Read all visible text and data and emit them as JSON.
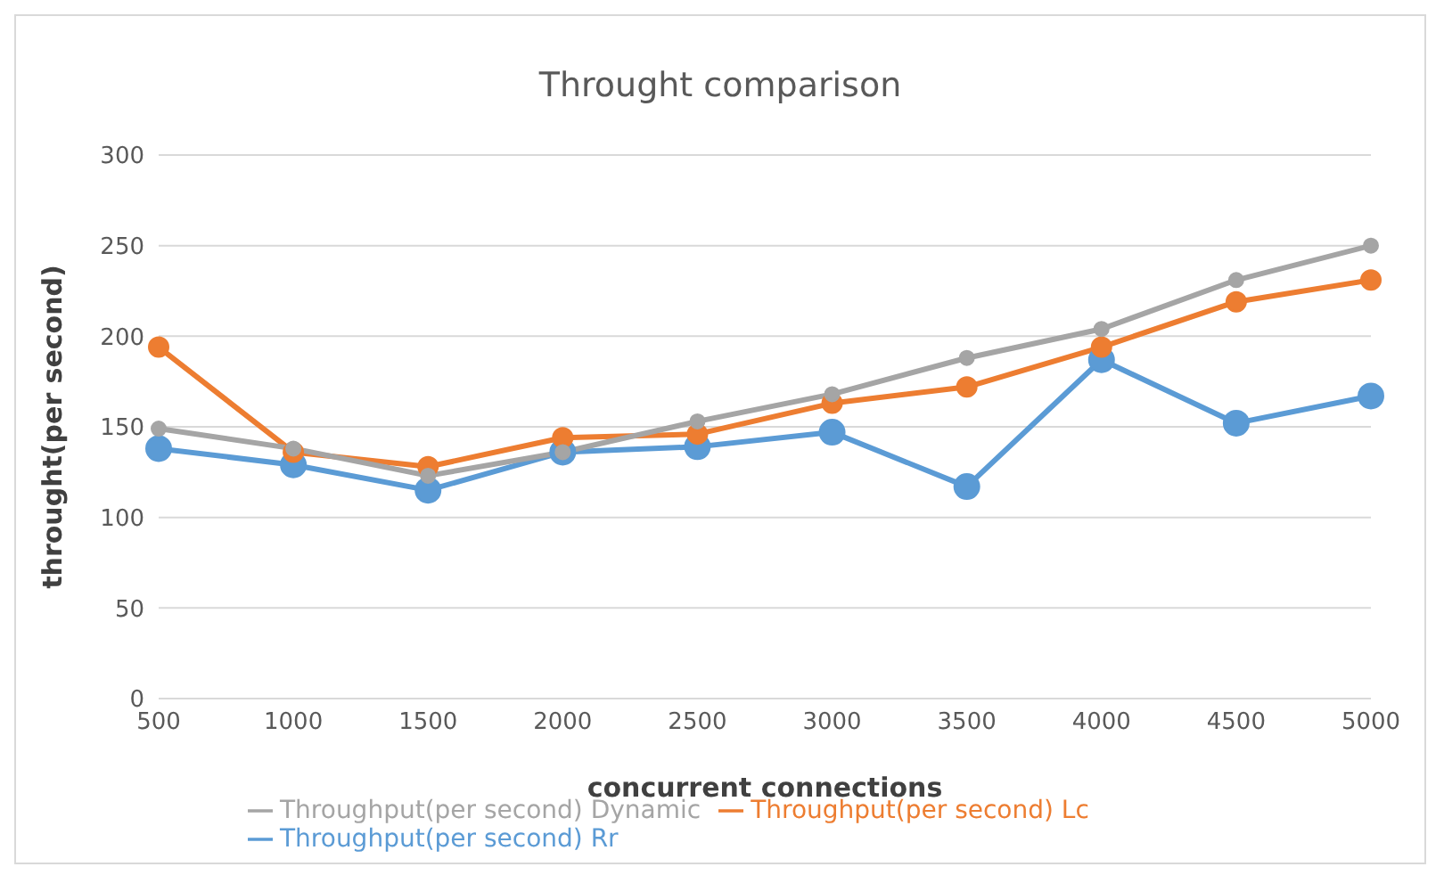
{
  "chart_data": {
    "type": "line",
    "title": "Throught comparison",
    "xlabel": "concurrent connections",
    "ylabel": "throught(per second)",
    "categories": [
      "500",
      "1000",
      "1500",
      "2000",
      "2500",
      "3000",
      "3500",
      "4000",
      "4500",
      "5000"
    ],
    "series": [
      {
        "name": "Throughput(per second) Rr",
        "color": "#5b9bd5",
        "values": [
          138,
          129,
          115,
          136,
          139,
          147,
          117,
          187,
          152,
          167
        ]
      },
      {
        "name": "Throughput(per second) Lc",
        "color": "#ed7d31",
        "values": [
          194,
          136,
          128,
          144,
          146,
          163,
          172,
          194,
          219,
          231
        ]
      },
      {
        "name": "Throughput(per second) Dynamic",
        "color": "#a5a5a5",
        "values": [
          149,
          138,
          123,
          136,
          153,
          168,
          188,
          204,
          231,
          250
        ]
      }
    ],
    "ylim": [
      0,
      300
    ],
    "yticks": [
      0,
      50,
      100,
      150,
      200,
      250,
      300
    ],
    "grid": "y",
    "legend": "bottom",
    "marker": "circle",
    "line_style": "solid"
  }
}
